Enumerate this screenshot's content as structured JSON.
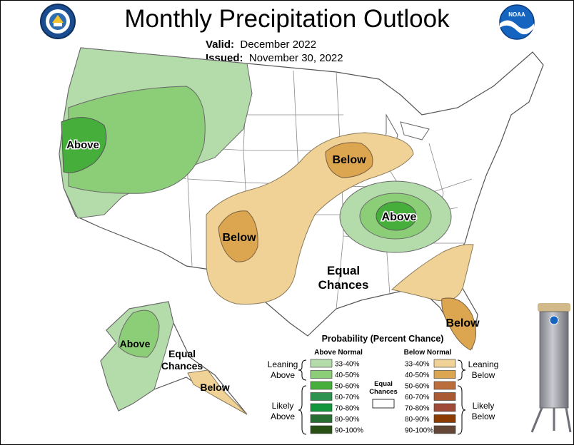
{
  "title": "Monthly Precipitation Outlook",
  "valid_label": "Valid:",
  "valid_value": "December 2022",
  "issued_label": "Issued:",
  "issued_value": "November 30, 2022",
  "noaa_text": "NOAA",
  "map_labels": {
    "above_west": "Above",
    "below_plains": "Below",
    "below_midwest": "Below",
    "above_ohio": "Above",
    "equal_chances_main_1": "Equal",
    "equal_chances_main_2": "Chances",
    "below_florida": "Below",
    "above_alaska": "Above",
    "equal_chances_ak_1": "Equal",
    "equal_chances_ak_2": "Chances",
    "below_alaska": "Below"
  },
  "legend": {
    "title": "Probability (Percent Chance)",
    "above_header": "Above Normal",
    "below_header": "Below Normal",
    "leaning_above_1": "Leaning",
    "leaning_above_2": "Above",
    "likely_above_1": "Likely",
    "likely_above_2": "Above",
    "leaning_below_1": "Leaning",
    "leaning_below_2": "Below",
    "likely_below_1": "Likely",
    "likely_below_2": "Below",
    "equal_1": "Equal",
    "equal_2": "Chances",
    "above": [
      {
        "range": "33-40%",
        "color": "#b4dcaa"
      },
      {
        "range": "40-50%",
        "color": "#8ccd78"
      },
      {
        "range": "50-60%",
        "color": "#46af3c"
      },
      {
        "range": "60-70%",
        "color": "#2d9150"
      },
      {
        "range": "70-80%",
        "color": "#14963c"
      },
      {
        "range": "80-90%",
        "color": "#286e32"
      },
      {
        "range": "90-100%",
        "color": "#285014"
      }
    ],
    "below": [
      {
        "range": "33-40%",
        "color": "#f0d296"
      },
      {
        "range": "40-50%",
        "color": "#dca550"
      },
      {
        "range": "50-60%",
        "color": "#bb6e3c"
      },
      {
        "range": "60-70%",
        "color": "#aa5a32"
      },
      {
        "range": "70-80%",
        "color": "#a04b37"
      },
      {
        "range": "80-90%",
        "color": "#8c3c00"
      },
      {
        "range": "90-100%",
        "color": "#644637"
      }
    ]
  },
  "colors": {
    "above_33": "#b4dcaa",
    "above_40": "#8ccd78",
    "above_50": "#46af3c",
    "below_33": "#f0d296",
    "below_40": "#dca550",
    "noaa_blue": "#1565c0"
  }
}
